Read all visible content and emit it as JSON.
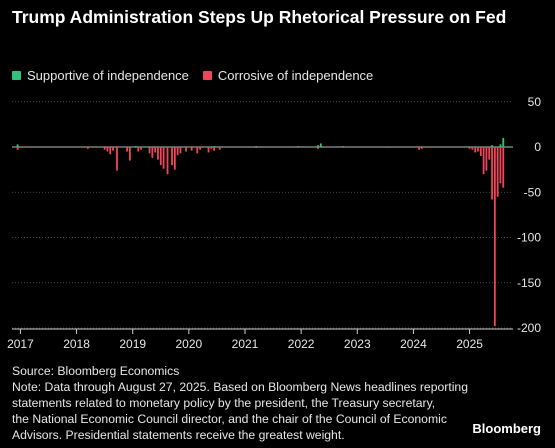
{
  "title": "Trump Administration Steps Up Rhetorical Pressure on Fed",
  "legend": {
    "supportive": "Supportive of independence",
    "corrosive": "Corrosive of independence"
  },
  "colors": {
    "supportive": "#2ec27e",
    "corrosive": "#f0455a",
    "background": "#000000",
    "text": "#e6e6e6"
  },
  "footer": {
    "source": "Source: Bloomberg Economics",
    "note_lines": [
      "Note: Data through August 27, 2025. Based on Bloomberg News headlines reporting",
      "statements related to monetary policy by the president, the Treasury secretary,",
      "the National Economic Council director, and the chair of the Council of Economic",
      "Advisors. Presidential statements receive the greatest weight."
    ]
  },
  "brand": "Bloomberg",
  "chart_data": {
    "type": "bar",
    "x_unit": "year (decimal)",
    "xlim": [
      2016.85,
      2025.72
    ],
    "ylim": [
      -205,
      50
    ],
    "yticks": [
      50,
      0,
      -50,
      -100,
      -150,
      -200
    ],
    "xticks": [
      2017,
      2018,
      2019,
      2020,
      2021,
      2022,
      2023,
      2024,
      2025
    ],
    "y_axis_position": "right",
    "grid": "horizontal dotted",
    "legend_position": "top-left",
    "series": [
      {
        "name": "Supportive of independence",
        "x": [
          2016.95,
          2019.05,
          2020.45,
          2021.2,
          2021.95,
          2022.3,
          2022.35,
          2022.75,
          2025.4,
          2025.55,
          2025.6
        ],
        "values": [
          3,
          1,
          1,
          1,
          1,
          2,
          4,
          1,
          2,
          3,
          10
        ]
      },
      {
        "name": "Corrosive of independence",
        "x": [
          2016.95,
          2018.2,
          2018.5,
          2018.55,
          2018.6,
          2018.65,
          2018.72,
          2018.9,
          2018.95,
          2019.1,
          2019.15,
          2019.3,
          2019.35,
          2019.4,
          2019.45,
          2019.5,
          2019.55,
          2019.62,
          2019.7,
          2019.75,
          2019.8,
          2019.85,
          2019.95,
          2020.05,
          2020.15,
          2020.2,
          2020.35,
          2020.4,
          2020.45,
          2020.55,
          2021.2,
          2022.3,
          2023.55,
          2024.1,
          2024.15,
          2025.0,
          2025.05,
          2025.1,
          2025.15,
          2025.2,
          2025.25,
          2025.3,
          2025.35,
          2025.4,
          2025.45,
          2025.5,
          2025.55,
          2025.6
        ],
        "values": [
          -3,
          -2,
          -3,
          -5,
          -8,
          -4,
          -26,
          -5,
          -15,
          -5,
          -3,
          -7,
          -12,
          -6,
          -14,
          -20,
          -24,
          -30,
          -20,
          -25,
          -9,
          -7,
          -5,
          -4,
          -7,
          -3,
          -6,
          -2,
          -4,
          -3,
          -1,
          -2,
          -1,
          -3,
          -2,
          -2,
          -3,
          -6,
          -5,
          -10,
          -30,
          -26,
          -14,
          -58,
          -198,
          -55,
          -40,
          -45
        ]
      }
    ]
  }
}
